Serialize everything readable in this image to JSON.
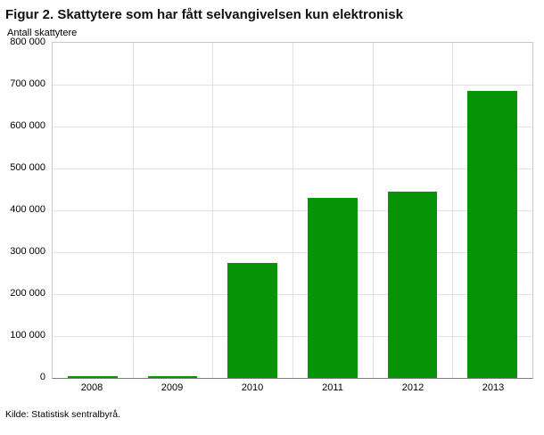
{
  "title": "Figur 2. Skattytere som har fått selvangivelsen kun elektronisk",
  "source": "Kilde: Statistisk sentralbyrå.",
  "chart_data": {
    "type": "bar",
    "title": "Figur 2. Skattytere som har fått selvangivelsen kun elektronisk",
    "ylabel": "Antall skattytere",
    "xlabel": "",
    "categories": [
      "2008",
      "2009",
      "2010",
      "2011",
      "2012",
      "2013"
    ],
    "values": [
      2000,
      3000,
      275000,
      430000,
      445000,
      685000
    ],
    "ylim": [
      0,
      800000
    ],
    "ytick_step": 100000,
    "yticks": [
      {
        "value": 0,
        "label": "0"
      },
      {
        "value": 100000,
        "label": "100 000"
      },
      {
        "value": 200000,
        "label": "200 000"
      },
      {
        "value": 300000,
        "label": "300 000"
      },
      {
        "value": 400000,
        "label": "400 000"
      },
      {
        "value": 500000,
        "label": "500 000"
      },
      {
        "value": 600000,
        "label": "600 000"
      },
      {
        "value": 700000,
        "label": "700 000"
      },
      {
        "value": 800000,
        "label": "800 000"
      }
    ],
    "bar_color": "#069306",
    "grid": true,
    "legend": false
  }
}
